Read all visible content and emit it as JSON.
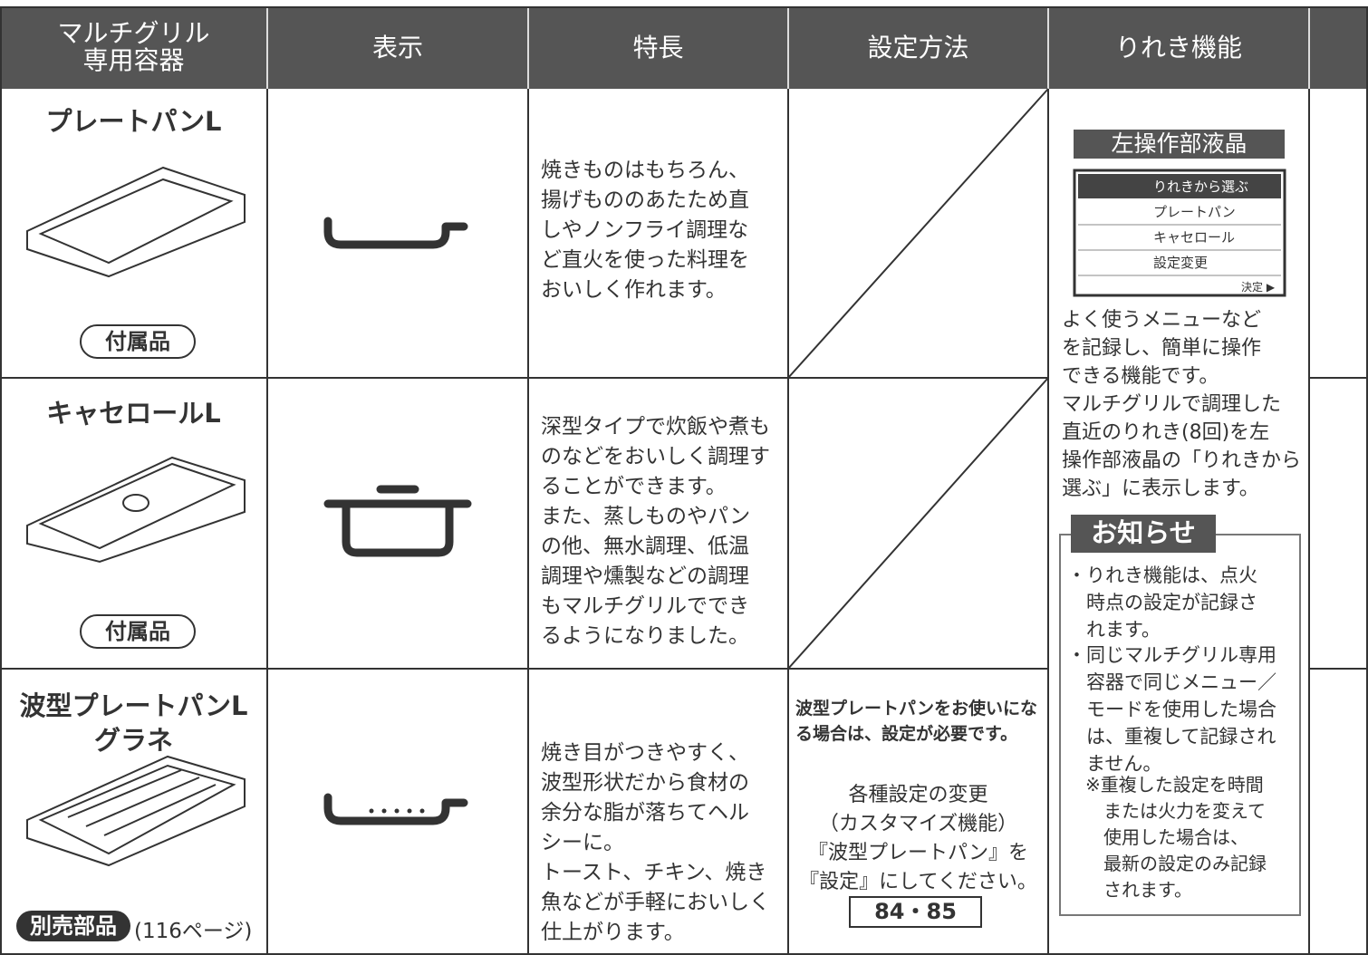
{
  "header": {
    "container": [
      "マルチグリル",
      "専用容器"
    ],
    "display": "表示",
    "features": "特長",
    "setting": "設定方法",
    "history": "りれき機能"
  },
  "rows": [
    {
      "name": [
        "プレートパンL"
      ],
      "badge": "付属品",
      "features": [
        "焼きものはもちろん、",
        "揚げもののあたため直",
        "しやノンフライ調理な",
        "ど直火を使った料理を",
        "おいしく作れます。"
      ]
    },
    {
      "name": [
        "キャセロールL"
      ],
      "badge": "付属品",
      "features": [
        "深型タイプで炊飯や煮も",
        "のなどをおいしく調理す",
        "ることができます。",
        "また、蒸しものやパン",
        "の他、無水調理、低温",
        "調理や燻製などの調理",
        "もマルチグリルででき",
        "るようになりました。"
      ]
    },
    {
      "name": [
        "波型プレートパンL",
        "グラネ"
      ],
      "badge": "別売部品",
      "note": "(116ページ)",
      "features": [
        "焼き目がつきやすく、",
        "波型形状だから食材の",
        "余分な脂が落ちてヘル",
        "シーに。",
        "トースト、チキン、焼き",
        "魚などが手軽においしく",
        "仕上がります。"
      ],
      "setting": {
        "bold": [
          "波型プレートパンをお使いにな",
          "る場合は、設定が必要です。"
        ],
        "lines": [
          "各種設定の変更",
          "（カスタマイズ機能）",
          "『波型プレートパン』を",
          "『設定』にしてください。"
        ],
        "ref": "84・85"
      }
    }
  ],
  "history": {
    "lcd_label": "左操作部液晶",
    "menu": [
      "りれきから選ぶ",
      "プレートパン",
      "キャセロール",
      "設定変更"
    ],
    "confirm": "決定 ▶",
    "description": [
      "よく使うメニューなど",
      "を記録し、簡単に操作",
      "できる機能です。",
      "マルチグリルで調理した",
      "直近のりれき(8回)を左",
      "操作部液晶の「りれきから",
      "選ぶ」に表示します。"
    ],
    "notice": {
      "title": "お知らせ",
      "items": [
        [
          "・りれき機能は、点火",
          "時点の設定が記録さ",
          "れます。"
        ],
        [
          "・同じマルチグリル専用",
          "容器で同じメニュー／",
          "モードを使用した場合",
          "は、重複して記録され",
          "ません。"
        ]
      ],
      "note": [
        "※重複した設定を時間",
        "または火力を変えて",
        "使用した場合は、",
        "最新の設定のみ記録",
        "されます。"
      ]
    }
  }
}
